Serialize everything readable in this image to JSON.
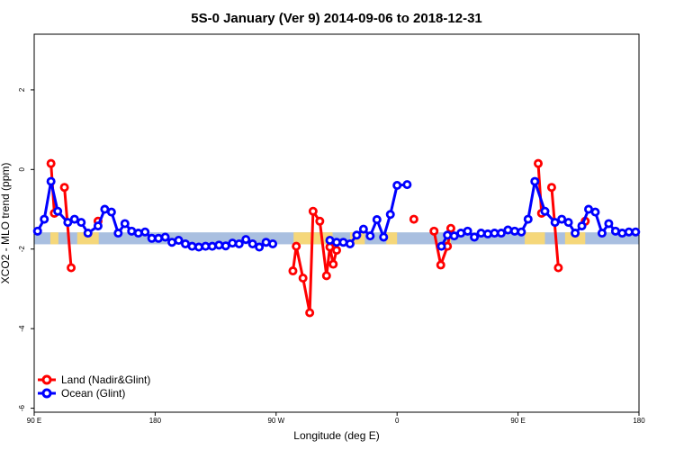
{
  "chart_data": {
    "type": "line",
    "title": "5S-0 January (Ver 9)   2014-09-06 to 2018-12-31",
    "xlabel": "Longitude (deg E)",
    "ylabel": "XCO2 - MLO trend (ppm)",
    "xlim": [
      90,
      540
    ],
    "ylim": [
      -6.1,
      3.4
    ],
    "x_ticks": [
      {
        "value": 90,
        "label": "90 E"
      },
      {
        "value": 180,
        "label": "180"
      },
      {
        "value": 270,
        "label": "90 W"
      },
      {
        "value": 360,
        "label": "0"
      },
      {
        "value": 450,
        "label": "90 E"
      },
      {
        "value": 540,
        "label": "180"
      }
    ],
    "y_ticks": [
      {
        "value": 2,
        "label": "2"
      },
      {
        "value": 0,
        "label": "0"
      },
      {
        "value": -2,
        "label": "-2"
      },
      {
        "value": -4,
        "label": "-4"
      },
      {
        "value": -6,
        "label": "-6"
      }
    ],
    "legend_position": "bottom-left",
    "map_strip": {
      "y_top": -1.58,
      "y_bottom": -1.88,
      "ocean_color": "#a9bfe0",
      "land_color": "#f5d77a"
    },
    "series": [
      {
        "name": "Land (Nadir&Glint)",
        "color": "#ff0000",
        "segments": [
          [
            [
              102.5,
              0.15
            ],
            [
              105,
              -1.1
            ]
          ],
          [
            [
              112.5,
              -0.45
            ],
            [
              117.5,
              -2.47
            ]
          ],
          [
            [
              137.5,
              -1.3
            ]
          ],
          [
            [
              282.5,
              -2.55
            ],
            [
              285,
              -1.93
            ],
            [
              290,
              -2.73
            ],
            [
              295,
              -3.6
            ],
            [
              297.5,
              -1.05
            ],
            [
              302.5,
              -1.3
            ],
            [
              307.5,
              -2.67
            ],
            [
              310,
              -1.95
            ],
            [
              312.5,
              -2.38
            ],
            [
              315,
              -2.03
            ]
          ],
          [
            [
              372.5,
              -1.25
            ]
          ],
          [
            [
              387.5,
              -1.55
            ],
            [
              392.5,
              -2.4
            ],
            [
              397.5,
              -1.93
            ],
            [
              400,
              -1.48
            ]
          ],
          [
            [
              465,
              0.15
            ],
            [
              467.5,
              -1.1
            ]
          ],
          [
            [
              475,
              -0.45
            ],
            [
              480,
              -2.47
            ]
          ],
          [
            [
              500,
              -1.3
            ]
          ]
        ]
      },
      {
        "name": "Ocean (Glint)",
        "color": "#0000ff",
        "segments": [
          [
            [
              92.5,
              -1.55
            ],
            [
              97.5,
              -1.25
            ],
            [
              102.5,
              -0.3
            ],
            [
              107.5,
              -1.05
            ],
            [
              115,
              -1.33
            ],
            [
              120,
              -1.25
            ],
            [
              125,
              -1.33
            ],
            [
              130,
              -1.6
            ],
            [
              137.5,
              -1.42
            ],
            [
              142.5,
              -1.0
            ],
            [
              147.5,
              -1.07
            ],
            [
              152.5,
              -1.6
            ],
            [
              157.5,
              -1.36
            ],
            [
              162.5,
              -1.55
            ],
            [
              167.5,
              -1.6
            ],
            [
              172.5,
              -1.57
            ],
            [
              177.5,
              -1.73
            ],
            [
              182.5,
              -1.73
            ],
            [
              187.5,
              -1.7
            ],
            [
              192.5,
              -1.83
            ],
            [
              197.5,
              -1.78
            ],
            [
              202.5,
              -1.87
            ],
            [
              207.5,
              -1.93
            ],
            [
              212.5,
              -1.95
            ],
            [
              217.5,
              -1.93
            ],
            [
              222.5,
              -1.93
            ],
            [
              227.5,
              -1.9
            ],
            [
              232.5,
              -1.92
            ],
            [
              237.5,
              -1.85
            ],
            [
              242.5,
              -1.87
            ],
            [
              247.5,
              -1.76
            ],
            [
              252.5,
              -1.87
            ],
            [
              257.5,
              -1.95
            ],
            [
              262.5,
              -1.83
            ],
            [
              267.5,
              -1.87
            ]
          ],
          [
            [
              310,
              -1.78
            ],
            [
              315,
              -1.83
            ],
            [
              320,
              -1.83
            ],
            [
              325,
              -1.87
            ],
            [
              330,
              -1.65
            ],
            [
              335,
              -1.5
            ],
            [
              340,
              -1.67
            ],
            [
              345,
              -1.26
            ],
            [
              350,
              -1.7
            ],
            [
              355,
              -1.13
            ],
            [
              360,
              -0.4
            ],
            [
              367.5,
              -0.38
            ]
          ],
          [
            [
              393,
              -1.93
            ],
            [
              397.5,
              -1.65
            ],
            [
              402.5,
              -1.67
            ],
            [
              407.5,
              -1.6
            ],
            [
              412.5,
              -1.55
            ],
            [
              417.5,
              -1.7
            ],
            [
              422.5,
              -1.6
            ],
            [
              427.5,
              -1.62
            ],
            [
              432.5,
              -1.6
            ],
            [
              437.5,
              -1.6
            ],
            [
              442.5,
              -1.52
            ],
            [
              447.5,
              -1.55
            ],
            [
              452.5,
              -1.57
            ],
            [
              457.5,
              -1.25
            ],
            [
              462.5,
              -0.3
            ],
            [
              470,
              -1.05
            ],
            [
              477.5,
              -1.33
            ],
            [
              482.5,
              -1.25
            ],
            [
              487.5,
              -1.33
            ],
            [
              492.5,
              -1.6
            ],
            [
              497.5,
              -1.42
            ],
            [
              502.5,
              -1.0
            ],
            [
              507.5,
              -1.07
            ],
            [
              512.5,
              -1.6
            ],
            [
              517.5,
              -1.36
            ],
            [
              522.5,
              -1.55
            ],
            [
              527.5,
              -1.6
            ],
            [
              532.5,
              -1.57
            ],
            [
              537.5,
              -1.57
            ]
          ]
        ]
      }
    ]
  }
}
